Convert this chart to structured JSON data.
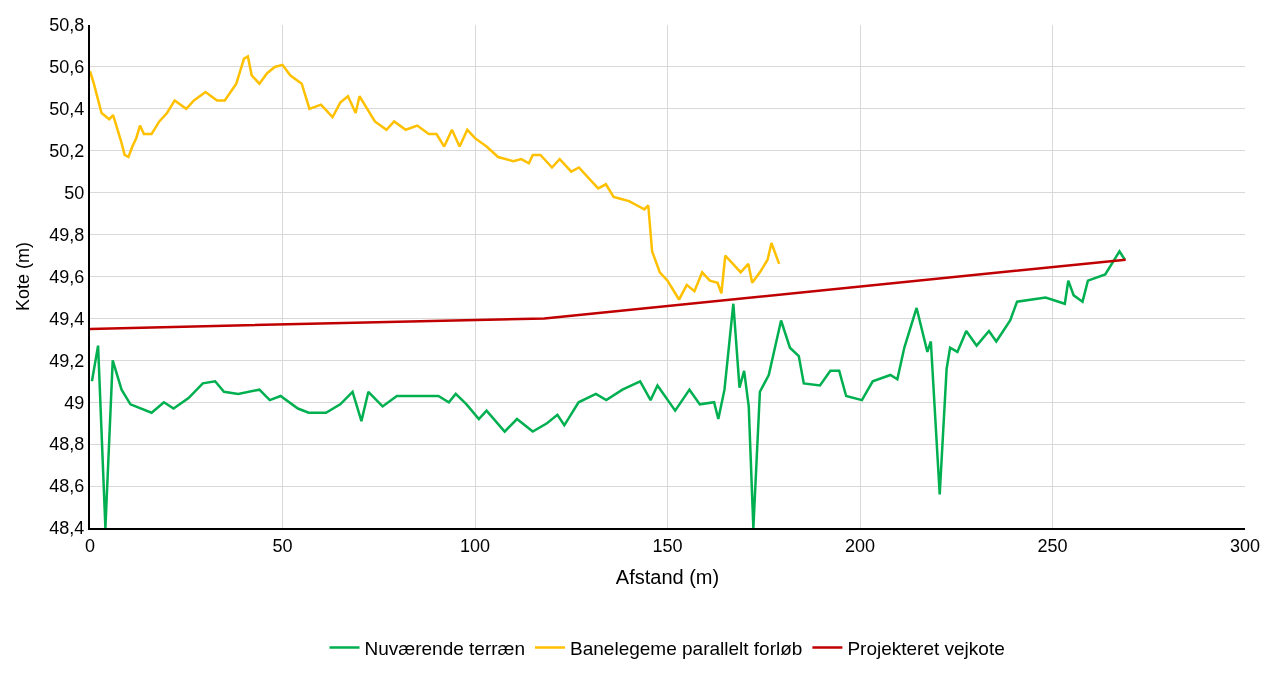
{
  "chart_data": {
    "type": "line",
    "xlabel": "Afstand (m)",
    "ylabel": "Kote (m)",
    "xlim": [
      0,
      300
    ],
    "xticks": [
      0,
      50,
      100,
      150,
      200,
      250,
      300
    ],
    "ylim": [
      48.4,
      50.8
    ],
    "yticks": [
      {
        "value": 48.4,
        "label": "48,4"
      },
      {
        "value": 48.6,
        "label": "48,6"
      },
      {
        "value": 48.8,
        "label": "48,8"
      },
      49,
      {
        "value": 49.2,
        "label": "49,2"
      },
      {
        "value": 49.4,
        "label": "49,4"
      },
      {
        "value": 49.6,
        "label": "49,6"
      },
      {
        "value": 49.8,
        "label": "49,8"
      },
      50,
      {
        "value": 50.2,
        "label": "50,2"
      },
      {
        "value": 50.4,
        "label": "50,4"
      },
      {
        "value": 50.6,
        "label": "50,6"
      },
      {
        "value": 50.8,
        "label": "50,8"
      }
    ],
    "grid": true,
    "legend": "bottom",
    "marker": "none",
    "line_style": "solid",
    "series": [
      {
        "name": "Nuværende terræn",
        "color": "#00b050",
        "x": [
          0.5,
          2.1,
          4.0,
          5.9,
          8.2,
          10.5,
          16,
          19.2,
          21.7,
          25.6,
          29.3,
          32.5,
          34.8,
          38.5,
          44,
          46.7,
          49.5,
          54,
          56.8,
          61.3,
          65,
          68.2,
          70.5,
          72.3,
          76,
          79.7,
          85,
          90.5,
          93.2,
          95,
          97.8,
          101,
          103,
          107.7,
          110.9,
          115,
          118.7,
          121.4,
          123.2,
          126.9,
          131.4,
          134.1,
          138.3,
          142.9,
          145.6,
          147.4,
          152,
          155.7,
          158.4,
          162.1,
          163.2,
          164.8,
          167.1,
          168.7,
          169.9,
          171.1,
          172.3,
          174,
          176.3,
          179.5,
          181.8,
          184.1,
          185.4,
          189.6,
          192.3,
          194.6,
          196.4,
          200.5,
          203.3,
          207.9,
          209.7,
          211.5,
          214.7,
          217.5,
          218.4,
          220.7,
          222.5,
          223.4,
          225.3,
          227.6,
          230.3,
          233.5,
          235.4,
          239,
          240.8,
          248.2,
          253.2,
          254.1,
          255.5,
          257.8,
          259.2,
          263.7,
          267.4,
          268.8
        ],
        "values": [
          49.1,
          49.27,
          48.4,
          49.2,
          49.06,
          48.99,
          48.95,
          49.0,
          48.97,
          49.02,
          49.09,
          49.1,
          49.05,
          49.04,
          49.06,
          49.01,
          49.03,
          48.97,
          48.95,
          48.95,
          48.99,
          49.05,
          48.91,
          49.05,
          48.98,
          49.03,
          49.03,
          49.03,
          49.0,
          49.04,
          48.99,
          48.92,
          48.96,
          48.86,
          48.92,
          48.86,
          48.9,
          48.94,
          48.89,
          49.0,
          49.04,
          49.01,
          49.06,
          49.1,
          49.01,
          49.08,
          48.96,
          49.06,
          48.99,
          49.0,
          48.92,
          49.06,
          49.47,
          49.07,
          49.15,
          48.98,
          48.4,
          49.05,
          49.13,
          49.39,
          49.26,
          49.22,
          49.09,
          49.08,
          49.15,
          49.15,
          49.03,
          49.01,
          49.1,
          49.13,
          49.11,
          49.26,
          49.45,
          49.24,
          49.29,
          48.56,
          49.16,
          49.26,
          49.24,
          49.34,
          49.27,
          49.34,
          49.29,
          49.39,
          49.48,
          49.5,
          49.47,
          49.58,
          49.51,
          49.48,
          49.58,
          49.61,
          49.72,
          49.68
        ]
      },
      {
        "name": "Banelegeme parallelt forløb",
        "color": "#ffc000",
        "x": [
          0,
          1,
          2,
          3,
          5,
          6,
          8,
          9,
          10,
          11,
          12,
          13,
          14,
          16,
          18,
          20,
          22,
          25,
          27,
          30,
          33,
          35,
          38,
          40,
          41,
          42,
          44,
          46,
          48,
          50,
          52,
          55,
          57,
          60,
          63,
          65,
          67,
          69,
          70,
          72,
          74,
          77,
          79,
          82,
          85,
          88,
          90,
          92,
          94,
          96,
          98,
          100,
          103,
          106,
          110,
          112,
          114,
          115,
          117,
          120,
          122,
          125,
          127,
          130,
          132,
          134,
          136,
          138,
          140,
          142,
          144,
          145,
          146,
          148,
          150,
          152,
          153,
          155,
          157,
          159,
          161,
          163,
          164,
          165,
          167,
          169,
          171,
          172,
          174,
          176,
          177,
          179
        ],
        "values": [
          50.58,
          50.52,
          50.45,
          50.38,
          50.35,
          50.37,
          50.25,
          50.18,
          50.17,
          50.22,
          50.26,
          50.32,
          50.28,
          50.28,
          50.34,
          50.38,
          50.44,
          50.4,
          50.44,
          50.48,
          50.44,
          50.44,
          50.52,
          50.64,
          50.65,
          50.56,
          50.52,
          50.57,
          50.6,
          50.61,
          50.56,
          50.52,
          50.4,
          50.42,
          50.36,
          50.43,
          50.46,
          50.38,
          50.46,
          50.4,
          50.34,
          50.3,
          50.34,
          50.3,
          50.32,
          50.28,
          50.28,
          50.22,
          50.3,
          50.22,
          50.3,
          50.26,
          50.22,
          50.17,
          50.15,
          50.16,
          50.14,
          50.18,
          50.18,
          50.12,
          50.16,
          50.1,
          50.12,
          50.06,
          50.02,
          50.04,
          49.98,
          49.97,
          49.96,
          49.94,
          49.92,
          49.94,
          49.72,
          49.62,
          49.58,
          49.52,
          49.49,
          49.56,
          49.53,
          49.62,
          49.58,
          49.57,
          49.52,
          49.7,
          49.66,
          49.62,
          49.66,
          49.57,
          49.62,
          49.68,
          49.76,
          49.66
        ]
      },
      {
        "name": "Projekteret vejkote",
        "color": "#c00000",
        "x": [
          0,
          118,
          269
        ],
        "values": [
          49.35,
          49.4,
          49.68
        ]
      }
    ]
  }
}
